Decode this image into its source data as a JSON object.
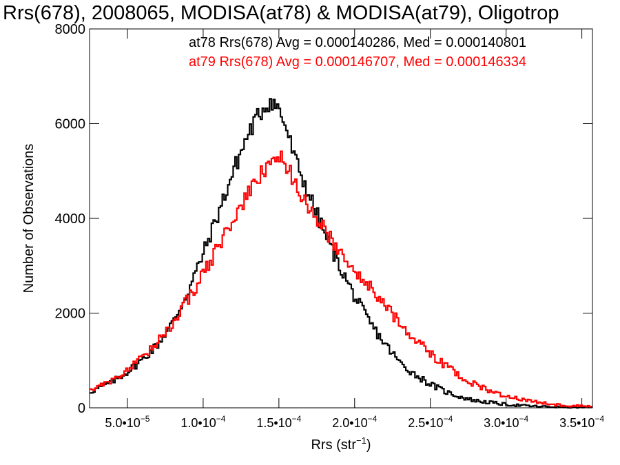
{
  "chart_data": {
    "type": "step-histogram",
    "title": "Rrs(678), 2008065, MODISA(at78) & MODISA(at79), Oligotrop",
    "xlabel": "Rrs (str",
    "xlabel_sup": "−1",
    "xlabel_close": ")",
    "ylabel": "Number of Observations",
    "xlim": [
      2.5e-05,
      0.000357
    ],
    "ylim": [
      0,
      8000
    ],
    "x_ticks": [
      {
        "value": 5e-05,
        "label": "5.0•10",
        "exp": "−5"
      },
      {
        "value": 0.0001,
        "label": "1.0•10",
        "exp": "−4"
      },
      {
        "value": 0.00015,
        "label": "1.5•10",
        "exp": "−4"
      },
      {
        "value": 0.0002,
        "label": "2.0•10",
        "exp": "−4"
      },
      {
        "value": 0.00025,
        "label": "2.5•10",
        "exp": "−4"
      },
      {
        "value": 0.0003,
        "label": "3.0•10",
        "exp": "−4"
      },
      {
        "value": 0.00035,
        "label": "3.5•10",
        "exp": "−4"
      }
    ],
    "y_ticks": [
      {
        "value": 0,
        "label": "0"
      },
      {
        "value": 2000,
        "label": "2000"
      },
      {
        "value": 4000,
        "label": "4000"
      },
      {
        "value": 6000,
        "label": "6000"
      },
      {
        "value": 8000,
        "label": "8000"
      }
    ],
    "annotations": [
      {
        "text": "at78 Rrs(678) Avg = 0.000140286, Med = 0.000140801",
        "color": "#000000"
      },
      {
        "text": "at79 Rrs(678) Avg = 0.000146707, Med = 0.000146334",
        "color": "#ff0000"
      }
    ],
    "series": [
      {
        "color": "#000000",
        "bin_width": 1.2e-06,
        "points": [
          [
            2.5e-05,
            330
          ],
          [
            4e-05,
            550
          ],
          [
            5e-05,
            760
          ],
          [
            6e-05,
            1020
          ],
          [
            7e-05,
            1340
          ],
          [
            8e-05,
            1800
          ],
          [
            9e-05,
            2450
          ],
          [
            0.0001,
            3250
          ],
          [
            0.00011,
            4100
          ],
          [
            0.00012,
            5000
          ],
          [
            0.00013,
            5800
          ],
          [
            0.00014,
            6350
          ],
          [
            0.000145,
            6500
          ],
          [
            0.00015,
            6300
          ],
          [
            0.000155,
            5900
          ],
          [
            0.00016,
            5300
          ],
          [
            0.00017,
            4500
          ],
          [
            0.00018,
            3700
          ],
          [
            0.00019,
            3000
          ],
          [
            0.0002,
            2350
          ],
          [
            0.00021,
            1800
          ],
          [
            0.00022,
            1350
          ],
          [
            0.00023,
            950
          ],
          [
            0.00024,
            700
          ],
          [
            0.00025,
            500
          ],
          [
            0.00026,
            340
          ],
          [
            0.00027,
            230
          ],
          [
            0.00028,
            150
          ],
          [
            0.0003,
            70
          ],
          [
            0.00032,
            30
          ],
          [
            0.00034,
            12
          ],
          [
            0.000357,
            5
          ]
        ]
      },
      {
        "color": "#ff0000",
        "bin_width": 1.2e-06,
        "points": [
          [
            2.5e-05,
            380
          ],
          [
            4e-05,
            580
          ],
          [
            5e-05,
            790
          ],
          [
            6e-05,
            1050
          ],
          [
            7e-05,
            1380
          ],
          [
            8e-05,
            1800
          ],
          [
            9e-05,
            2300
          ],
          [
            0.0001,
            2800
          ],
          [
            0.00011,
            3400
          ],
          [
            0.00012,
            4000
          ],
          [
            0.00013,
            4500
          ],
          [
            0.00014,
            5000
          ],
          [
            0.00015,
            5300
          ],
          [
            0.000155,
            5150
          ],
          [
            0.00016,
            4800
          ],
          [
            0.00017,
            4250
          ],
          [
            0.00018,
            3750
          ],
          [
            0.00019,
            3350
          ],
          [
            0.0002,
            2950
          ],
          [
            0.00021,
            2550
          ],
          [
            0.00022,
            2150
          ],
          [
            0.00023,
            1800
          ],
          [
            0.00024,
            1450
          ],
          [
            0.00025,
            1150
          ],
          [
            0.00026,
            880
          ],
          [
            0.00027,
            660
          ],
          [
            0.00028,
            480
          ],
          [
            0.00029,
            350
          ],
          [
            0.0003,
            250
          ],
          [
            0.00031,
            180
          ],
          [
            0.00032,
            120
          ],
          [
            0.00033,
            80
          ],
          [
            0.00034,
            50
          ],
          [
            0.000357,
            25
          ]
        ]
      }
    ]
  }
}
